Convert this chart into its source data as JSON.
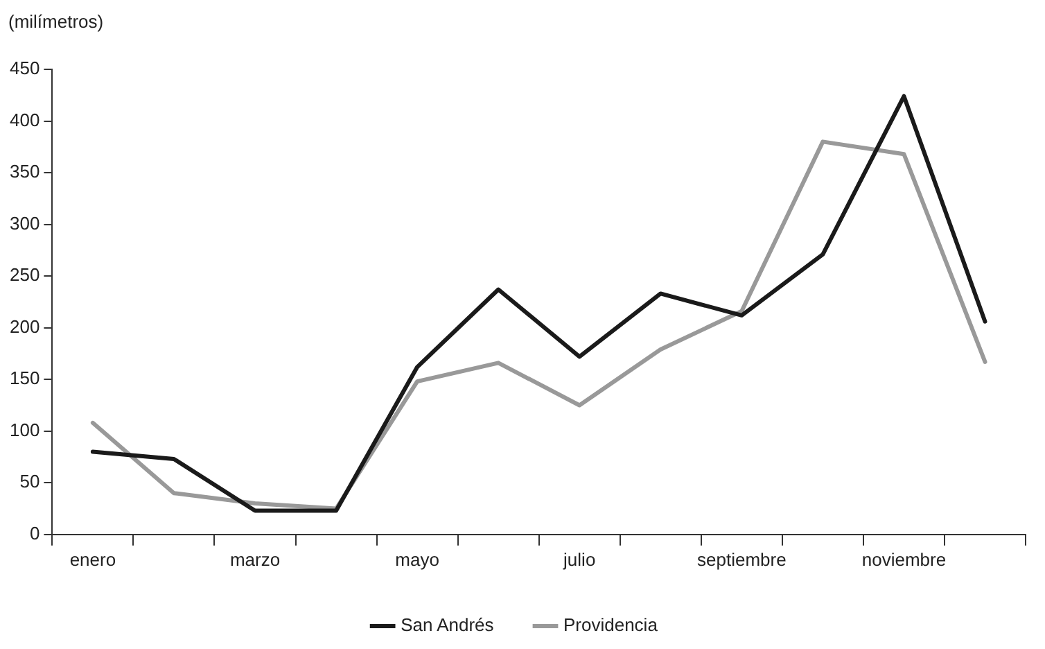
{
  "chart_data": {
    "type": "line",
    "ylabel": "(milímetros)",
    "categories": [
      "enero",
      null,
      "marzo",
      null,
      "mayo",
      null,
      "julio",
      null,
      "septiembre",
      null,
      "noviembre",
      null
    ],
    "series": [
      {
        "name": "San Andrés",
        "color": "#1a1a1a",
        "values": [
          80,
          73,
          23,
          23,
          162,
          237,
          172,
          233,
          212,
          271,
          424,
          206
        ]
      },
      {
        "name": "Providencia",
        "color": "#999999",
        "values": [
          108,
          40,
          30,
          25,
          148,
          166,
          125,
          179,
          216,
          380,
          368,
          167
        ]
      }
    ],
    "ylim": [
      0,
      450
    ],
    "yticks": [
      0,
      50,
      100,
      150,
      200,
      250,
      300,
      350,
      400,
      450
    ],
    "grid": false,
    "legend": "bottom",
    "marker": "none",
    "line_style": "solid"
  }
}
